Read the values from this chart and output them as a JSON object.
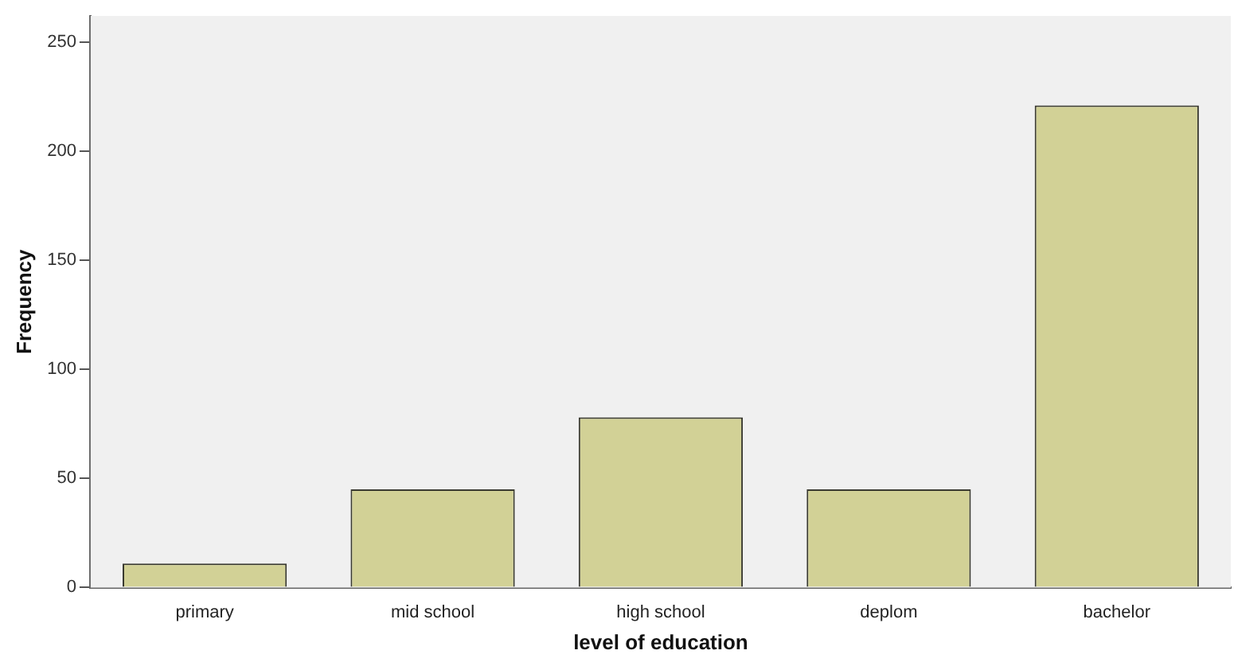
{
  "chart_data": {
    "type": "bar",
    "xlabel": "level of education",
    "ylabel": "Frequency",
    "categories": [
      "primary",
      "mid school",
      "high school",
      "deplom",
      "bachelor"
    ],
    "values": [
      11,
      45,
      78,
      45,
      221
    ],
    "color": "#d2d196",
    "ylim": [
      0,
      262
    ],
    "yticks": [
      0,
      50,
      100,
      150,
      200,
      250
    ],
    "grid": false,
    "legend": false
  }
}
